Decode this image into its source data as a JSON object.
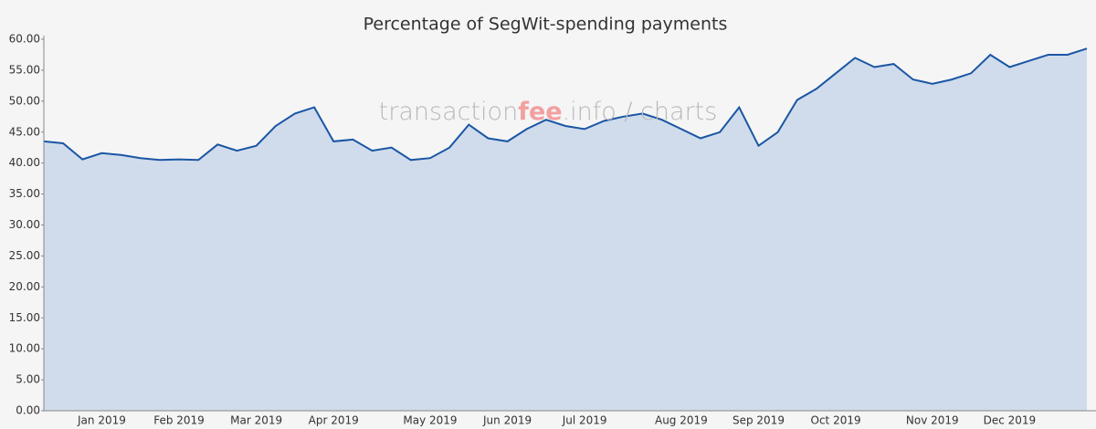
{
  "chart_data": {
    "type": "area",
    "title": "Percentage of SegWit-spending payments",
    "watermark": {
      "part1": "transaction",
      "part2": "fee",
      "part3": ".info / charts"
    },
    "categories": [
      null,
      null,
      null,
      "Jan 2019",
      null,
      null,
      null,
      "Feb 2019",
      null,
      null,
      null,
      "Mar 2019",
      null,
      null,
      null,
      "Apr 2019",
      null,
      null,
      null,
      null,
      "May 2019",
      null,
      null,
      null,
      "Jun 2019",
      null,
      null,
      null,
      "Jul 2019",
      null,
      null,
      null,
      null,
      "Aug 2019",
      null,
      null,
      null,
      "Sep 2019",
      null,
      null,
      null,
      "Oct 2019",
      null,
      null,
      null,
      null,
      "Nov 2019",
      null,
      null,
      null,
      "Dec 2019",
      null,
      null,
      null,
      null
    ],
    "values": [
      43.5,
      43.2,
      40.6,
      41.6,
      41.3,
      40.8,
      40.5,
      40.6,
      40.5,
      43.0,
      42.0,
      42.8,
      46.0,
      48.0,
      49.0,
      43.5,
      43.8,
      42.0,
      42.5,
      40.5,
      40.8,
      42.5,
      46.2,
      44.0,
      43.5,
      45.5,
      47.0,
      46.0,
      45.5,
      46.8,
      47.5,
      48.0,
      47.0,
      45.5,
      44.0,
      45.0,
      49.0,
      42.8,
      45.0,
      50.2,
      52.0,
      54.5,
      57.0,
      55.5,
      56.0,
      53.5,
      52.8,
      53.5,
      54.5,
      57.5,
      55.5,
      56.5,
      57.5,
      57.5,
      58.5
    ],
    "color": "#1a56a4",
    "fill": "#d0dcec",
    "ylim": [
      0,
      60
    ],
    "yticks": [
      {
        "value": 0,
        "label": "0.00"
      },
      {
        "value": 5,
        "label": "5.00"
      },
      {
        "value": 10,
        "label": "10.00"
      },
      {
        "value": 15,
        "label": "15.00"
      },
      {
        "value": 20,
        "label": "20.00"
      },
      {
        "value": 25,
        "label": "25.00"
      },
      {
        "value": 30,
        "label": "30.00"
      },
      {
        "value": 35,
        "label": "35.00"
      },
      {
        "value": 40,
        "label": "40.00"
      },
      {
        "value": 45,
        "label": "45.00"
      },
      {
        "value": 50,
        "label": "50.00"
      },
      {
        "value": 55,
        "label": "55.00"
      },
      {
        "value": 60,
        "label": "60.00"
      }
    ],
    "grid": false
  }
}
